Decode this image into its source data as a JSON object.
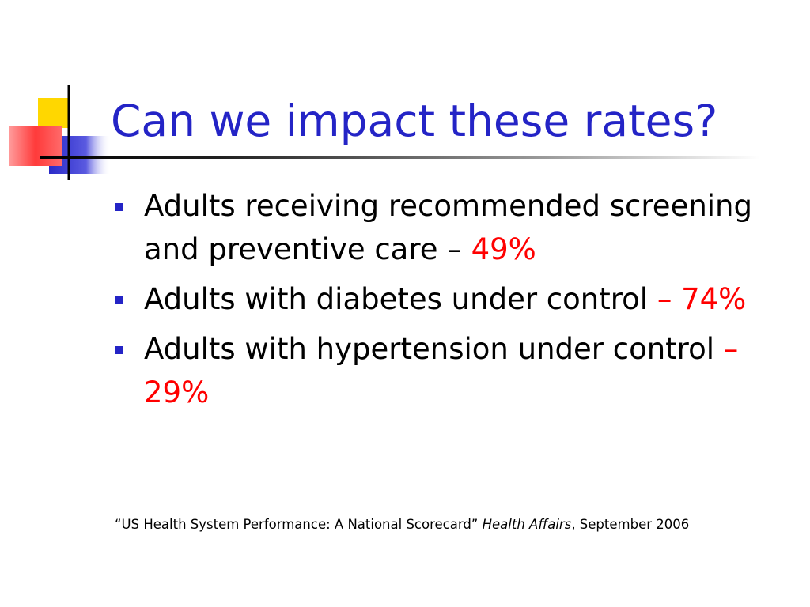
{
  "slide": {
    "title": "Can we impact these rates?",
    "bullets": [
      {
        "text": "Adults receiving recommended screening and preventive care",
        "separator": "–",
        "value": "49%"
      },
      {
        "text": "Adults with diabetes under control",
        "separator": "–",
        "value": "74%"
      },
      {
        "text": "Adults with hypertension under control",
        "separator": "–",
        "value": "29%"
      }
    ],
    "citation": {
      "article": "“US Health System Performance: A National Scorecard”",
      "journal": "Health Affairs",
      "date": ", September 2006"
    }
  },
  "colors": {
    "title": "#2424c6",
    "bullet_marker": "#2424c6",
    "value_highlight": "#ff0000",
    "body_text": "#000000",
    "logo_yellow": "#ffd700",
    "logo_blue": "#3333cc",
    "logo_red": "#ff3333"
  }
}
